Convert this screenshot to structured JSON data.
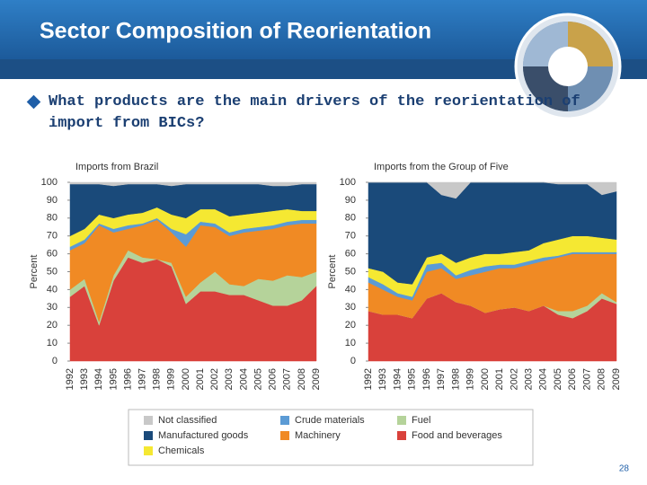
{
  "slide": {
    "title": "Sector Composition of Reorientation",
    "bullet": "What products are the main drivers of the reorientation of import from BICs?",
    "page_number": "28"
  },
  "chart_data": [
    {
      "type": "stacked-area",
      "title": "Imports from Brazil",
      "y_label": "Percent",
      "categories": [
        "1992",
        "1993",
        "1994",
        "1995",
        "1996",
        "1997",
        "1998",
        "1999",
        "2000",
        "2001",
        "2002",
        "2003",
        "2004",
        "2005",
        "2006",
        "2007",
        "2008",
        "2009"
      ],
      "ylim": [
        0,
        100
      ],
      "yticks": [
        0,
        10,
        20,
        30,
        40,
        50,
        60,
        70,
        80,
        90,
        100
      ],
      "series": [
        {
          "name": "Food and beverages",
          "color": "#d9413b",
          "values": [
            36,
            42,
            20,
            45,
            58,
            55,
            57,
            53,
            32,
            39,
            39,
            37,
            37,
            34,
            31,
            31,
            34,
            42
          ]
        },
        {
          "name": "Fuel",
          "color": "#b5d39a",
          "values": [
            4,
            4,
            2,
            3,
            4,
            3,
            0,
            2,
            4,
            5,
            11,
            6,
            5,
            12,
            14,
            17,
            13,
            8
          ]
        },
        {
          "name": "Machinery",
          "color": "#f08a24",
          "values": [
            22,
            20,
            54,
            24,
            12,
            18,
            22,
            17,
            28,
            32,
            25,
            27,
            30,
            27,
            29,
            28,
            30,
            27
          ]
        },
        {
          "name": "Crude materials",
          "color": "#5b9bd5",
          "values": [
            2,
            2,
            1,
            2,
            2,
            1,
            1,
            2,
            7,
            2,
            2,
            2,
            2,
            2,
            2,
            2,
            2,
            2
          ]
        },
        {
          "name": "Chemicals",
          "color": "#f5e832",
          "values": [
            6,
            6,
            5,
            6,
            6,
            6,
            6,
            8,
            9,
            7,
            8,
            9,
            8,
            8,
            8,
            7,
            5,
            5
          ]
        },
        {
          "name": "Manufactured goods",
          "color": "#1a4a7a",
          "values": [
            29,
            25,
            17,
            18,
            17,
            16,
            13,
            16,
            19,
            14,
            14,
            18,
            17,
            16,
            14,
            13,
            15,
            15
          ]
        },
        {
          "name": "Not classified",
          "color": "#c8c8c8",
          "values": [
            1,
            1,
            1,
            2,
            1,
            1,
            1,
            2,
            1,
            1,
            1,
            1,
            1,
            1,
            2,
            2,
            1,
            1
          ]
        }
      ]
    },
    {
      "type": "stacked-area",
      "title": "Imports from the Group of Five",
      "y_label": "Percent",
      "categories": [
        "1992",
        "1993",
        "1994",
        "1995",
        "1996",
        "1997",
        "1998",
        "1999",
        "2000",
        "2001",
        "2002",
        "2003",
        "2004",
        "2005",
        "2006",
        "2007",
        "2008",
        "2009"
      ],
      "ylim": [
        0,
        100
      ],
      "yticks": [
        0,
        10,
        20,
        30,
        40,
        50,
        60,
        70,
        80,
        90,
        100
      ],
      "series": [
        {
          "name": "Food and beverages",
          "color": "#d9413b",
          "values": [
            28,
            26,
            26,
            24,
            35,
            38,
            33,
            31,
            27,
            29,
            30,
            28,
            31,
            26,
            24,
            28,
            35,
            32
          ]
        },
        {
          "name": "Fuel",
          "color": "#b5d39a",
          "values": [
            0,
            0,
            0,
            0,
            0,
            0,
            0,
            0,
            0,
            0,
            0,
            0,
            0,
            2,
            4,
            3,
            3,
            1
          ]
        },
        {
          "name": "Machinery",
          "color": "#f08a24",
          "values": [
            16,
            14,
            10,
            10,
            15,
            14,
            13,
            17,
            23,
            23,
            22,
            26,
            25,
            30,
            32,
            29,
            22,
            27
          ]
        },
        {
          "name": "Crude materials",
          "color": "#5b9bd5",
          "values": [
            3,
            3,
            2,
            2,
            4,
            3,
            2,
            3,
            3,
            2,
            2,
            2,
            2,
            1,
            1,
            1,
            1,
            1
          ]
        },
        {
          "name": "Chemicals",
          "color": "#f5e832",
          "values": [
            5,
            7,
            6,
            7,
            4,
            5,
            7,
            7,
            7,
            6,
            7,
            6,
            8,
            9,
            9,
            9,
            8,
            7
          ]
        },
        {
          "name": "Manufactured goods",
          "color": "#1a4a7a",
          "values": [
            48,
            50,
            56,
            57,
            42,
            33,
            36,
            42,
            40,
            40,
            39,
            38,
            34,
            31,
            29,
            29,
            24,
            27
          ]
        },
        {
          "name": "Not classified",
          "color": "#c8c8c8",
          "values": [
            0,
            0,
            0,
            0,
            0,
            7,
            9,
            0,
            0,
            0,
            0,
            0,
            0,
            1,
            1,
            1,
            7,
            5
          ]
        }
      ]
    }
  ]
}
